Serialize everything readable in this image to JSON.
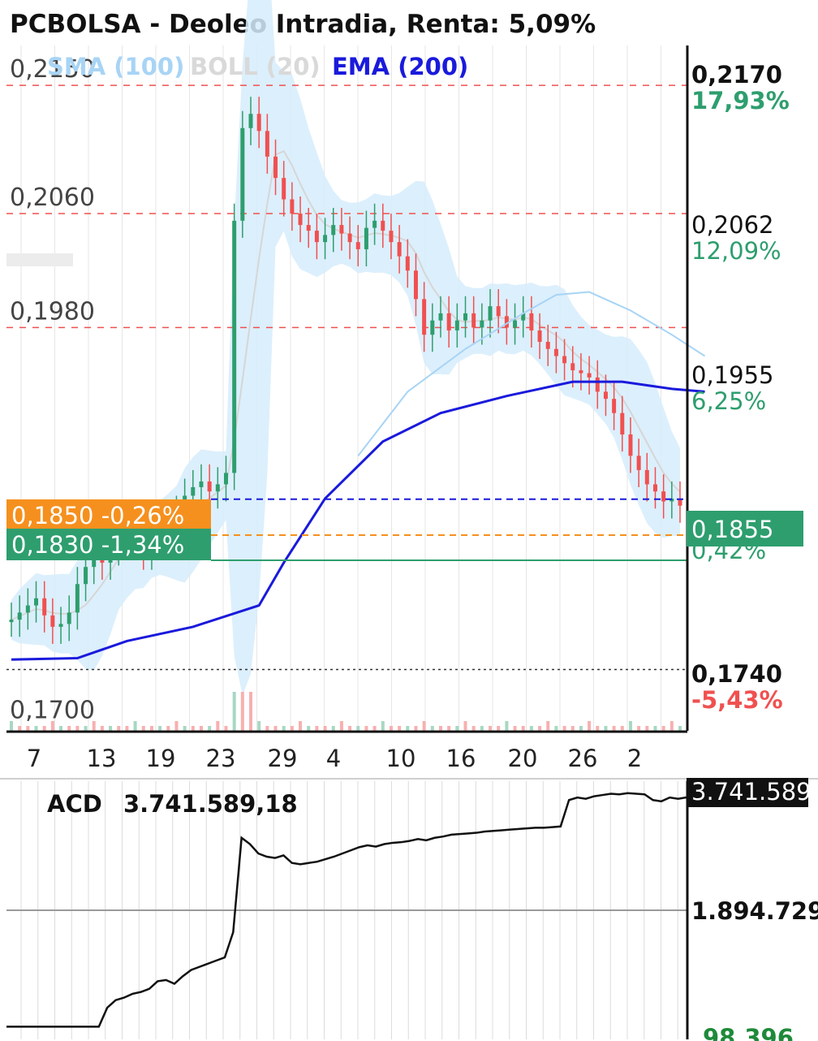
{
  "header": {
    "title": "PCBOLSA - Deoleo Intradia, Renta: 5,09%"
  },
  "legend": [
    {
      "label": "SMA (100)",
      "color": "#a8d4f5"
    },
    {
      "label": "BOLL (20)",
      "color": "#d9d9d9"
    },
    {
      "label": "EMA (200)",
      "color": "#1a1adc"
    }
  ],
  "colors": {
    "up": "#2e9e6e",
    "down": "#f05050",
    "boll_fill": "#d6ecfb",
    "sma": "#a8d4f5",
    "ema": "#1a1adc",
    "grid_dashed": "#f05050",
    "orange": "#f5901e",
    "green_tag": "#2e9e6e"
  },
  "chart_data": [
    {
      "type": "candlestick",
      "title": "PCBOLSA - Deoleo Intradia, Renta: 5,09%",
      "ylim": [
        0.1697,
        0.2178
      ],
      "x_tick_labels": [
        "7",
        "13",
        "19",
        "23",
        "29",
        "4",
        "10",
        "16",
        "20",
        "26",
        "2"
      ],
      "left_price_labels": [
        "0,2150",
        "0,2060",
        "0,1980",
        "0,1700"
      ],
      "left_price_values": [
        0.215,
        0.206,
        0.198,
        0.17
      ],
      "right_axis": [
        {
          "price": "0,2170",
          "pct": "17,93%",
          "value": 0.217,
          "bold": true,
          "pct_color": "#2e9e6e"
        },
        {
          "price": "0,2062",
          "pct": "12,09%",
          "value": 0.2062,
          "bold": false,
          "pct_color": "#2e9e6e"
        },
        {
          "price": "0,1955",
          "pct": "6,25%",
          "value": 0.1955,
          "bold": false,
          "pct_color": "#2e9e6e"
        },
        {
          "price": "0,1740",
          "pct": "-5,43%",
          "value": 0.174,
          "bold": true,
          "pct_color": "#f05050"
        }
      ],
      "current_price": {
        "label": "0,1855",
        "pct": "0,42%",
        "value": 0.1855
      },
      "levels": [
        {
          "label": "0,1850",
          "pct": "-0,26%",
          "value": 0.185,
          "color": "#f5901e"
        },
        {
          "label": "0,1830",
          "pct": "-1,34%",
          "value": 0.183,
          "color": "#2e9e6e"
        }
      ],
      "reference_line": 0.174,
      "close_series": [
        0.1775,
        0.178,
        0.1785,
        0.179,
        0.1778,
        0.177,
        0.1772,
        0.178,
        0.18,
        0.1812,
        0.182,
        0.1815,
        0.1825,
        0.1835,
        0.184,
        0.183,
        0.1822,
        0.183,
        0.1838,
        0.1845,
        0.185,
        0.1862,
        0.1868,
        0.1872,
        0.1865,
        0.187,
        0.1878,
        0.2055,
        0.212,
        0.213,
        0.2118,
        0.21,
        0.2085,
        0.207,
        0.206,
        0.2052,
        0.2048,
        0.204,
        0.2045,
        0.2052,
        0.2046,
        0.204,
        0.2035,
        0.205,
        0.2055,
        0.2048,
        0.204,
        0.203,
        0.202,
        0.2,
        0.1975,
        0.1985,
        0.199,
        0.1978,
        0.1985,
        0.199,
        0.198,
        0.1985,
        0.1995,
        0.1988,
        0.198,
        0.1985,
        0.199,
        0.1978,
        0.197,
        0.1965,
        0.196,
        0.1955,
        0.195,
        0.1948,
        0.1945,
        0.1935,
        0.193,
        0.192,
        0.1905,
        0.189,
        0.188,
        0.187,
        0.1865,
        0.1858,
        0.186,
        0.1855
      ],
      "series": [
        {
          "name": "SMA (100)",
          "points": [
            [
              42,
              0.189
            ],
            [
              48,
              0.1935
            ],
            [
              55,
              0.1965
            ],
            [
              62,
              0.199
            ],
            [
              66,
              0.2003
            ],
            [
              70,
              0.2005
            ],
            [
              75,
              0.1992
            ],
            [
              80,
              0.1975
            ],
            [
              84,
              0.196
            ]
          ]
        },
        {
          "name": "EMA (200)",
          "points": [
            [
              0,
              0.1747
            ],
            [
              8,
              0.1748
            ],
            [
              14,
              0.176
            ],
            [
              22,
              0.177
            ],
            [
              30,
              0.1785
            ],
            [
              33,
              0.1815
            ],
            [
              38,
              0.186
            ],
            [
              45,
              0.19
            ],
            [
              52,
              0.192
            ],
            [
              60,
              0.1932
            ],
            [
              68,
              0.1942
            ],
            [
              74,
              0.1942
            ],
            [
              80,
              0.1937
            ],
            [
              84,
              0.1935
            ]
          ]
        }
      ]
    },
    {
      "type": "line",
      "label_text": "ACD",
      "value_text": "3.741.589,18",
      "right_axis": [
        {
          "label": "3.741.589",
          "value": 3741589,
          "inverted": true
        },
        {
          "label": "1.894.729",
          "value": 1894729,
          "inverted": false
        },
        {
          "label": "98.396",
          "value": 98396,
          "inverted": false
        }
      ],
      "ylim": [
        0,
        4000000
      ],
      "series": [
        {
          "name": "ACD",
          "values": [
            98396,
            98396,
            98396,
            98396,
            98396,
            98396,
            98396,
            98396,
            98396,
            98396,
            98396,
            98396,
            400000,
            520000,
            560000,
            620000,
            650000,
            700000,
            820000,
            840000,
            780000,
            900000,
            1000000,
            1050000,
            1100000,
            1150000,
            1200000,
            1600000,
            3100000,
            3000000,
            2850000,
            2800000,
            2780000,
            2820000,
            2700000,
            2680000,
            2700000,
            2720000,
            2760000,
            2800000,
            2850000,
            2900000,
            2950000,
            2980000,
            2960000,
            3000000,
            3020000,
            3030000,
            3050000,
            3080000,
            3060000,
            3100000,
            3120000,
            3150000,
            3160000,
            3170000,
            3180000,
            3200000,
            3210000,
            3220000,
            3230000,
            3240000,
            3250000,
            3260000,
            3260000,
            3270000,
            3280000,
            3700000,
            3740000,
            3720000,
            3760000,
            3780000,
            3800000,
            3790000,
            3810000,
            3800000,
            3790000,
            3700000,
            3680000,
            3740000,
            3720000,
            3741589
          ]
        }
      ]
    }
  ]
}
